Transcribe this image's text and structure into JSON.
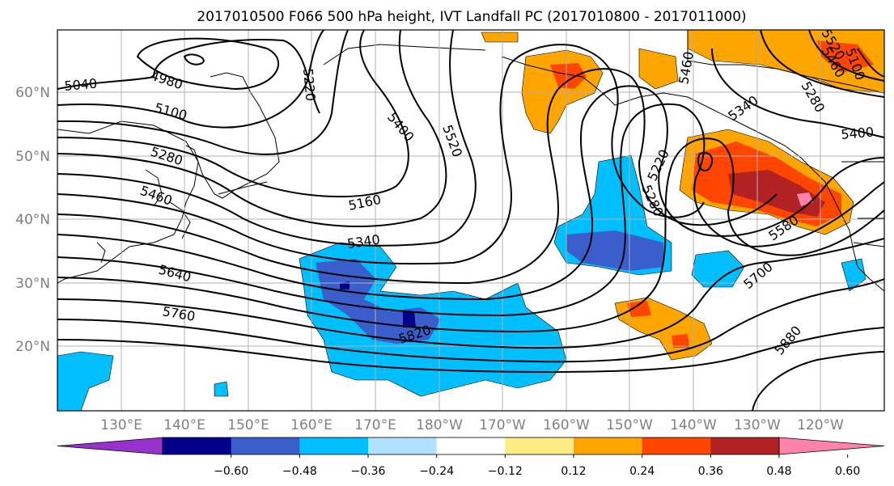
{
  "title": "2017010500 F066 500 hPa height, IVT Landfall PC (2017010800 - 2017011000)",
  "lat_labels": [
    "60°N",
    "50°N",
    "40°N",
    "30°N",
    "20°N"
  ],
  "lon_labels": [
    "130°E",
    "140°E",
    "150°E",
    "160°E",
    "170°E",
    "180°W",
    "170°W",
    "160°W",
    "150°W",
    "140°W",
    "130°W",
    "120°W"
  ],
  "colorbar": {
    "tick_labels": [
      "−0.60",
      "−0.48",
      "−0.36",
      "−0.24",
      "−0.12",
      "0.12",
      "0.24",
      "0.36",
      "0.48",
      "0.60"
    ],
    "colors": [
      "#9932cc",
      "#00008b",
      "#3a5fcd",
      "#00bfff",
      "#b0e2ff",
      "#ffffff",
      "#fdeb85",
      "#ffa500",
      "#ff4500",
      "#b22222",
      "#ff82ab"
    ]
  },
  "contour_labels": {
    "c4980": "4980",
    "c5040": "5040",
    "c5100a": "5100",
    "c5100b": "5100",
    "c5160": "5160",
    "c5220a": "5220",
    "c5220b": "5220",
    "c5280a": "5280",
    "c5280b": "5280",
    "c5280c": "5280",
    "c5340a": "5340",
    "c5340b": "5340",
    "c5400a": "5400",
    "c5400b": "5400",
    "c5460a": "5460",
    "c5460b": "5460",
    "c5460c": "5460",
    "c5520a": "5520",
    "c5520b": "5520",
    "c5580": "5580",
    "c5640": "5640",
    "c5700": "5700",
    "c5760": "5760",
    "c5820": "5820",
    "c5880": "5880",
    "c5160b": "5160"
  }
}
